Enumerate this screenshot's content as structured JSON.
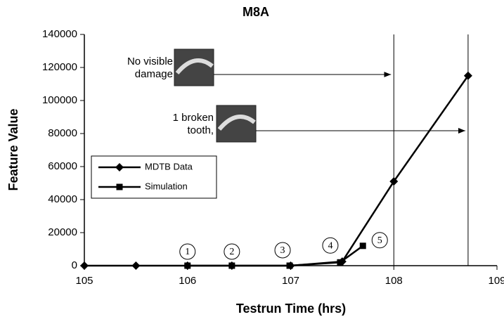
{
  "chart_data": {
    "type": "line",
    "title": "M8A",
    "x_label": "Testrun Time (hrs)",
    "y_label": "Feature Value",
    "xlim": [
      105,
      109
    ],
    "xticks": [
      105,
      106,
      107,
      108,
      109
    ],
    "ylim": [
      0,
      140000
    ],
    "yticks": [
      0,
      20000,
      40000,
      60000,
      80000,
      100000,
      120000,
      140000
    ],
    "series": [
      {
        "name": "MDTB Data",
        "color": "#000000",
        "marker": "diamond",
        "x": [
          105,
          105.5,
          106,
          106.43,
          107,
          107.5,
          108,
          108.72
        ],
        "values": [
          0,
          0,
          0,
          0,
          0,
          2500,
          51000,
          115000
        ]
      },
      {
        "name": "Simulation",
        "color": "#000000",
        "marker": "square",
        "x": [
          106,
          106.43,
          106.99,
          107.48,
          107.7
        ],
        "values": [
          0,
          0,
          0,
          2000,
          12000
        ]
      }
    ],
    "point_labels": [
      "1",
      "2",
      "3",
      "4",
      "5"
    ],
    "vlines": [
      108,
      108.72
    ],
    "annotations": [
      {
        "lines": [
          "No visible",
          "damage"
        ]
      },
      {
        "lines": [
          "1 broken",
          "tooth,"
        ]
      }
    ],
    "legend": "upper left"
  }
}
